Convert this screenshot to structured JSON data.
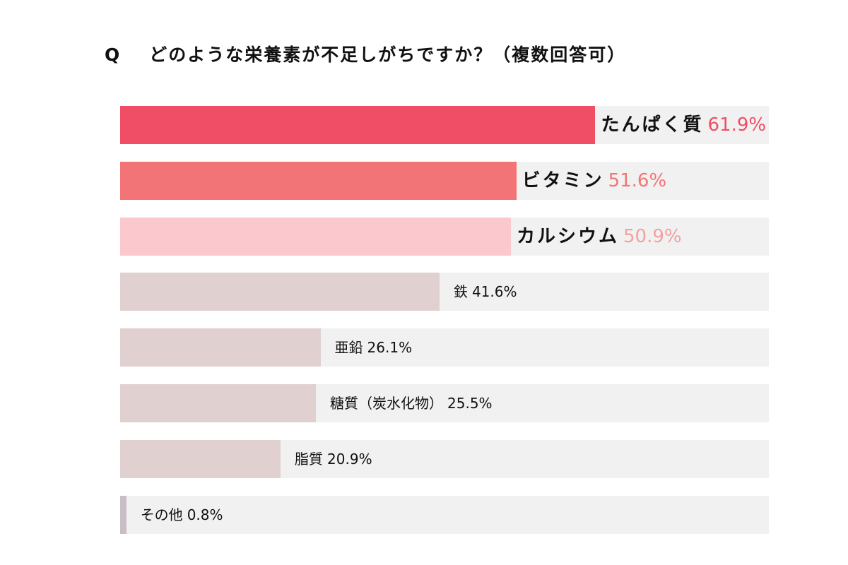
{
  "title": {
    "q": "Q",
    "text": "どのような栄養素が不足しがちですか？（複数回答可）"
  },
  "chart_data": {
    "type": "bar",
    "orientation": "horizontal",
    "title": "どのような栄養素が不足しがちですか？（複数回答可）",
    "categories": [
      "たんぱく質",
      "ビタミン",
      "カルシウム",
      "鉄",
      "亜鉛",
      "糖質（炭水化物）",
      "脂質",
      "その他"
    ],
    "values": [
      61.9,
      51.6,
      50.9,
      41.6,
      26.1,
      25.5,
      20.9,
      0.8
    ],
    "labels": [
      "61.9%",
      "51.6%",
      "50.9%",
      "41.6%",
      "26.1%",
      "25.5%",
      "20.9%",
      "0.8%"
    ],
    "unit": "%",
    "xlim": [
      0,
      84.5
    ],
    "bar_colors": [
      "#f04d66",
      "#f27476",
      "#fbc9cd",
      "#e0d0d0",
      "#e0d0d0",
      "#e0d0d0",
      "#e0d0d0",
      "#c9bec6"
    ],
    "pct_colors": [
      "#f04d66",
      "#f27476",
      "#f4a0a0",
      "#111111",
      "#111111",
      "#111111",
      "#111111",
      "#111111"
    ],
    "track_color": "#f1f1f1",
    "grid": false
  }
}
